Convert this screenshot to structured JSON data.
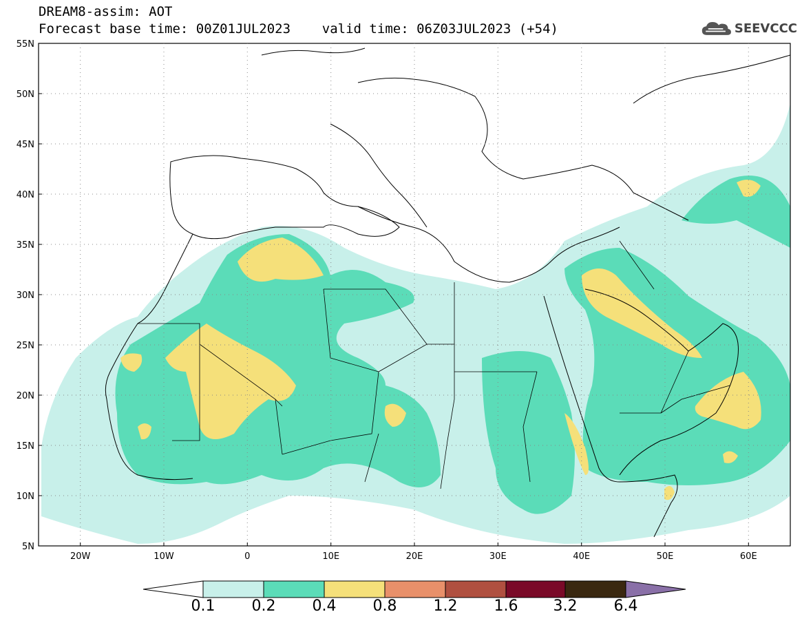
{
  "header": {
    "line1": "DREAM8-assim: AOT",
    "line2": "Forecast base time: 00Z01JUL2023    valid time: 06Z03JUL2023 (+54)"
  },
  "logo": {
    "text": "SEEVCCC",
    "icon": "cloud-icon"
  },
  "axes": {
    "lat_labels": [
      "55N",
      "50N",
      "45N",
      "40N",
      "35N",
      "30N",
      "25N",
      "20N",
      "15N",
      "10N",
      "5N"
    ],
    "lon_labels": [
      "20W",
      "10W",
      "0",
      "10E",
      "20E",
      "30E",
      "40E",
      "50E",
      "60E"
    ]
  },
  "colorbar": {
    "levels": [
      "0.1",
      "0.2",
      "0.4",
      "0.8",
      "1.2",
      "1.6",
      "3.2",
      "6.4"
    ],
    "colors": [
      "#ffffff",
      "#c8f0ea",
      "#5bdcb8",
      "#f5e07a",
      "#e8906a",
      "#b05040",
      "#7a0a28",
      "#3a2810",
      "#8a70a8"
    ]
  }
}
